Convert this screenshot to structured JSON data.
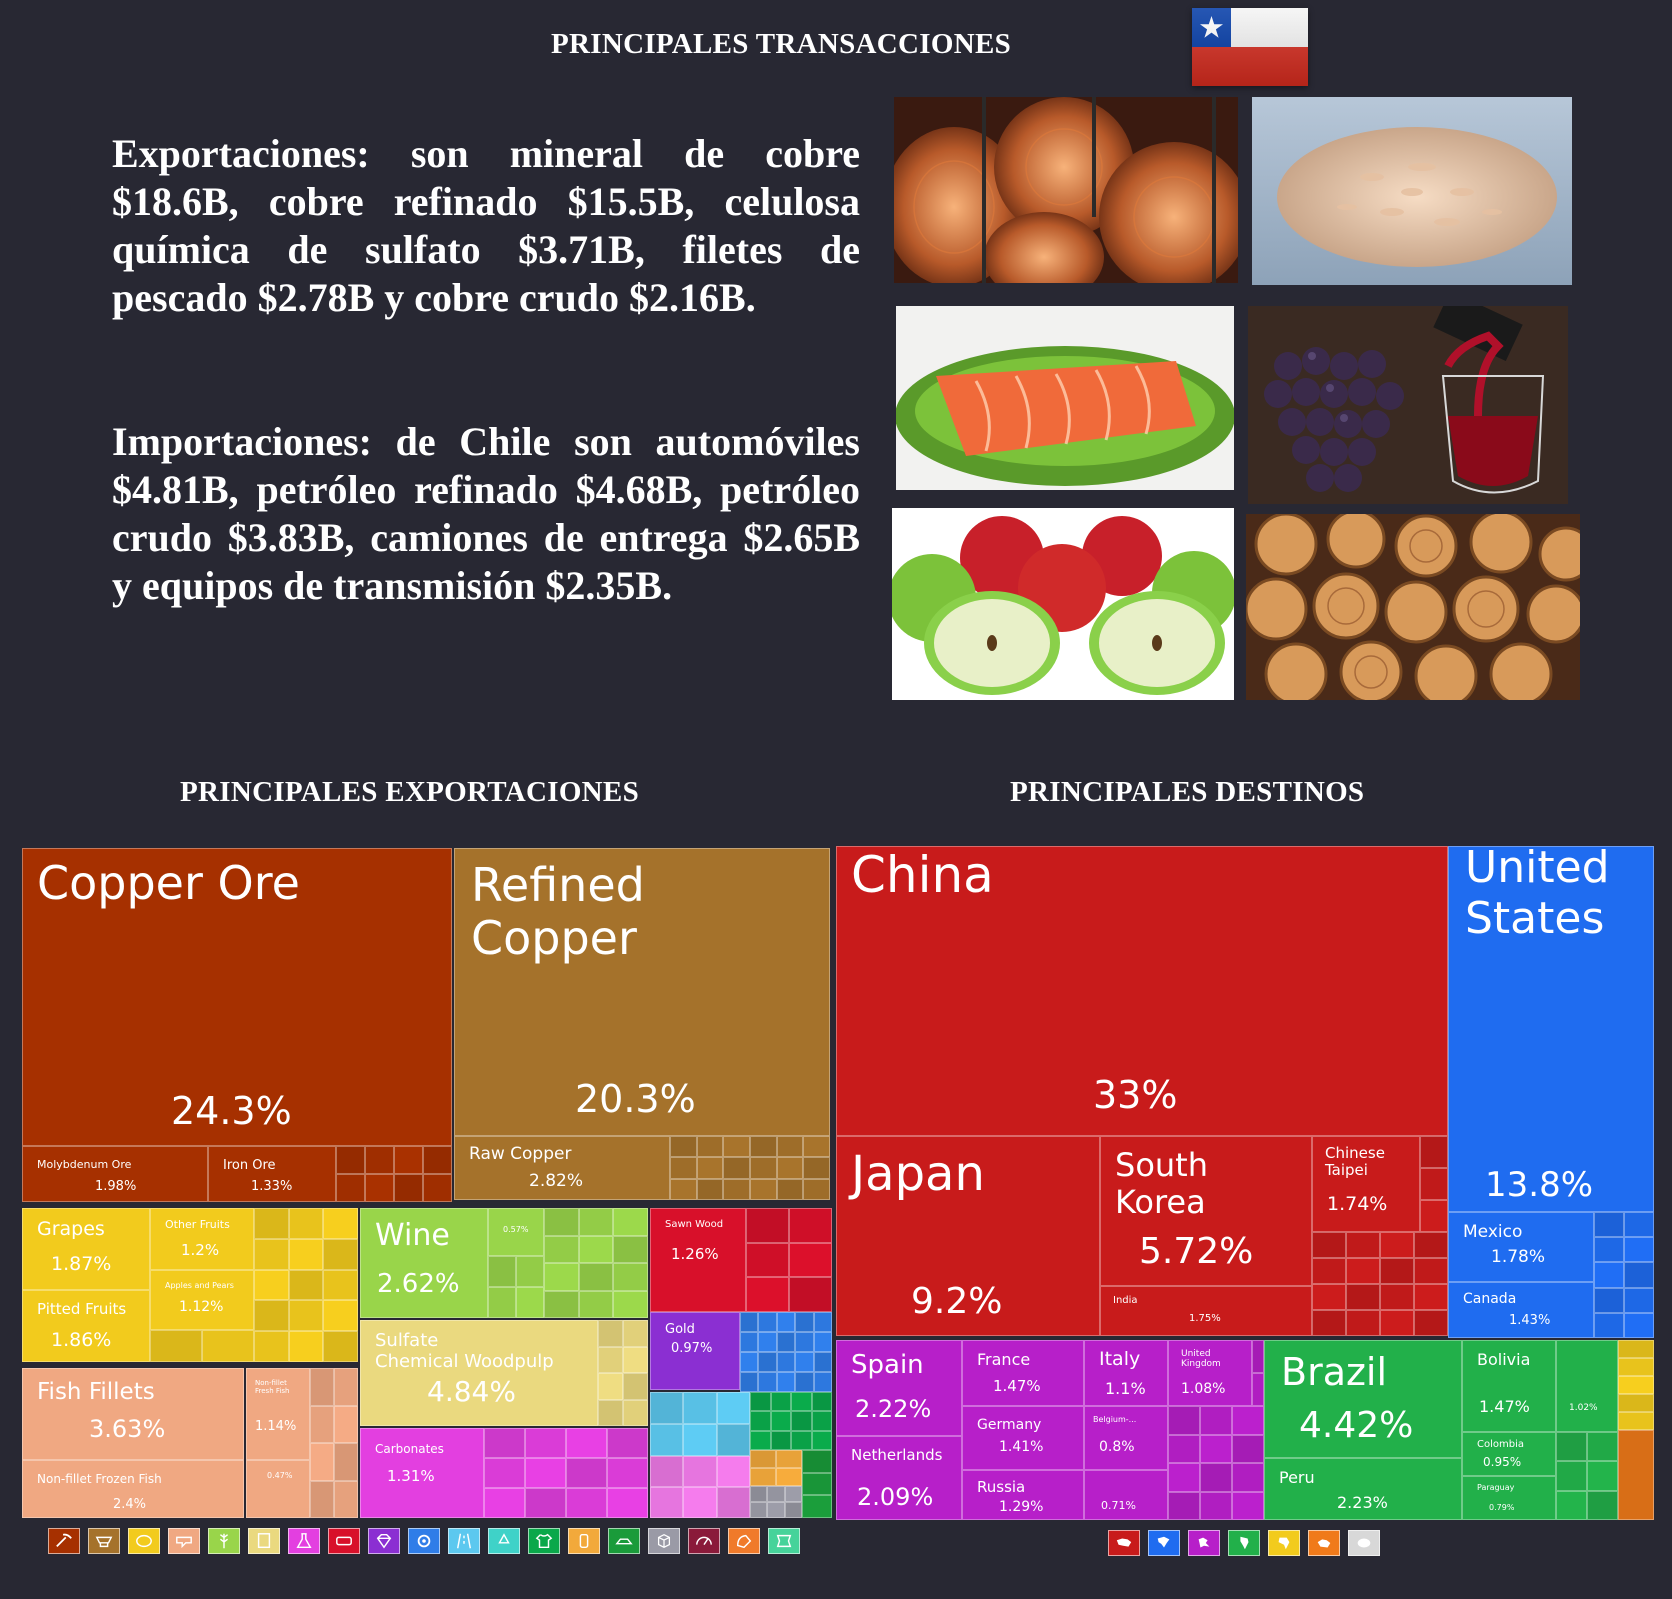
{
  "header": {
    "title": "PRINCIPALES TRANSACCIONES",
    "flag_colors": {
      "white": "#ffffff",
      "red": "#d52b1e",
      "blue": "#0039a6"
    }
  },
  "text": {
    "exports": "Exportaciones: son mineral de cobre $18.6B, cobre refinado $15.5B, celulosa química de sulfato $3.71B, filetes de pescado $2.78B y cobre crudo $2.16B.",
    "imports": "Importaciones: de Chile son automóviles $4.81B, petróleo refinado $4.68B, petróleo crudo $3.83B, camiones de entrega $2.65B y equipos de transmisión $2.35B."
  },
  "photos": [
    "copper-wire-coils",
    "wood-pulp-flakes",
    "salmon-fillet",
    "grapes-and-red-wine",
    "apples",
    "firewood-logs"
  ],
  "sections": {
    "exports_title": "PRINCIPALES EXPORTACIONES",
    "destinations_title": "PRINCIPALES DESTINOS"
  },
  "chart_data": [
    {
      "type": "treemap",
      "title": "PRINCIPALES EXPORTACIONES",
      "items": [
        {
          "name": "Copper Ore",
          "value": "24.3%",
          "color": "#a63000"
        },
        {
          "name": "Refined Copper",
          "value": "20.3%",
          "color": "#a5722b"
        },
        {
          "name": "Molybdenum Ore",
          "value": "1.98%",
          "color": "#a63000"
        },
        {
          "name": "Iron Ore",
          "value": "1.33%",
          "color": "#a63000"
        },
        {
          "name": "Raw Copper",
          "value": "2.82%",
          "color": "#a5722b"
        },
        {
          "name": "Grapes",
          "value": "1.87%",
          "color": "#f2cb1d"
        },
        {
          "name": "Other Fruits",
          "value": "1.2%",
          "color": "#f2cb1d"
        },
        {
          "name": "Pitted Fruits",
          "value": "1.86%",
          "color": "#f2cb1d"
        },
        {
          "name": "Apples and Pears",
          "value": "1.12%",
          "color": "#f2cb1d"
        },
        {
          "name": "Wine",
          "value": "2.62%",
          "color": "#99d54a"
        },
        {
          "name": "",
          "value": "0.57%",
          "color": "#99d54a"
        },
        {
          "name": "Sulfate Chemical Woodpulp",
          "value": "4.84%",
          "color": "#ead97f"
        },
        {
          "name": "Sawn Wood",
          "value": "1.26%",
          "color": "#d8102a"
        },
        {
          "name": "Gold",
          "value": "0.97%",
          "color": "#8b2fd2"
        },
        {
          "name": "Fish Fillets",
          "value": "3.63%",
          "color": "#f0a882"
        },
        {
          "name": "Non-fillet Fresh Fish",
          "value": "1.14%",
          "color": "#f0a882"
        },
        {
          "name": "Non-fillet Frozen Fish",
          "value": "2.4%",
          "color": "#f0a882"
        },
        {
          "name": "",
          "value": "0.47%",
          "color": "#f0a882"
        },
        {
          "name": "Carbonates",
          "value": "1.31%",
          "color": "#e33fe0"
        }
      ],
      "category_icons": [
        {
          "name": "mining-icon",
          "color": "#a63000"
        },
        {
          "name": "metals-icon",
          "color": "#a5722b"
        },
        {
          "name": "food-icon",
          "color": "#f2cb1d"
        },
        {
          "name": "animal-products-icon",
          "color": "#f0a882"
        },
        {
          "name": "vegetable-icon",
          "color": "#99d54a"
        },
        {
          "name": "paper-icon",
          "color": "#ead97f"
        },
        {
          "name": "chemicals-icon",
          "color": "#e33fe0"
        },
        {
          "name": "plastics-icon",
          "color": "#d8102a"
        },
        {
          "name": "precious-stones-icon",
          "color": "#8b2fd2"
        },
        {
          "name": "machines-icon",
          "color": "#2f7de8"
        },
        {
          "name": "transportation-icon",
          "color": "#5cc8ef"
        },
        {
          "name": "recycling-icon",
          "color": "#3fd2c8"
        },
        {
          "name": "textiles-icon",
          "color": "#0aa84a"
        },
        {
          "name": "footwear-icon",
          "color": "#f2a93b"
        },
        {
          "name": "stone-glass-icon",
          "color": "#1a9b3a"
        },
        {
          "name": "wood-icon",
          "color": "#9a9aa6"
        },
        {
          "name": "instruments-icon",
          "color": "#8a1a3a"
        },
        {
          "name": "weapons-icon",
          "color": "#f07a2a"
        },
        {
          "name": "misc-icon",
          "color": "#46d39a"
        }
      ]
    },
    {
      "type": "treemap",
      "title": "PRINCIPALES DESTINOS",
      "items": [
        {
          "name": "China",
          "value": "33%",
          "color": "#c81b1b"
        },
        {
          "name": "United States",
          "value": "13.8%",
          "color": "#1f6cf0"
        },
        {
          "name": "Japan",
          "value": "9.2%",
          "color": "#c81b1b"
        },
        {
          "name": "South Korea",
          "value": "5.72%",
          "color": "#c81b1b"
        },
        {
          "name": "Chinese Taipei",
          "value": "1.74%",
          "color": "#c81b1b"
        },
        {
          "name": "India",
          "value": "1.75%",
          "color": "#c81b1b"
        },
        {
          "name": "Mexico",
          "value": "1.78%",
          "color": "#1f6cf0"
        },
        {
          "name": "Canada",
          "value": "1.43%",
          "color": "#1f6cf0"
        },
        {
          "name": "Spain",
          "value": "2.22%",
          "color": "#b71fc9"
        },
        {
          "name": "France",
          "value": "1.47%",
          "color": "#b71fc9"
        },
        {
          "name": "Italy",
          "value": "1.1%",
          "color": "#b71fc9"
        },
        {
          "name": "United Kingdom",
          "value": "1.08%",
          "color": "#b71fc9"
        },
        {
          "name": "Germany",
          "value": "1.41%",
          "color": "#b71fc9"
        },
        {
          "name": "Belgium-...",
          "value": "0.8%",
          "color": "#b71fc9"
        },
        {
          "name": "Netherlands",
          "value": "2.09%",
          "color": "#b71fc9"
        },
        {
          "name": "Russia",
          "value": "1.29%",
          "color": "#b71fc9"
        },
        {
          "name": "",
          "value": "0.71%",
          "color": "#b71fc9"
        },
        {
          "name": "Brazil",
          "value": "4.42%",
          "color": "#22b04a"
        },
        {
          "name": "Bolivia",
          "value": "1.47%",
          "color": "#22b04a"
        },
        {
          "name": "",
          "value": "1.02%",
          "color": "#22b04a"
        },
        {
          "name": "Colombia",
          "value": "0.95%",
          "color": "#22b04a"
        },
        {
          "name": "Peru",
          "value": "2.23%",
          "color": "#22b04a"
        },
        {
          "name": "Paraguay",
          "value": "0.79%",
          "color": "#22b04a"
        }
      ],
      "continent_icons": [
        {
          "name": "asia-icon",
          "color": "#c81b1b"
        },
        {
          "name": "north-america-icon",
          "color": "#1f6cf0"
        },
        {
          "name": "europe-icon",
          "color": "#b71fc9"
        },
        {
          "name": "south-america-icon",
          "color": "#22b04a"
        },
        {
          "name": "africa-icon",
          "color": "#f2cb1d"
        },
        {
          "name": "oceania-icon",
          "color": "#f07a1a"
        },
        {
          "name": "other-icon",
          "color": "#d8d8d8"
        }
      ]
    }
  ]
}
